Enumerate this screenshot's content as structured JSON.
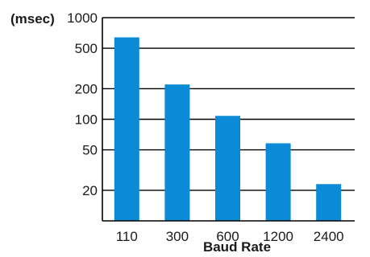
{
  "chart_data": {
    "type": "bar",
    "y_scale": "log",
    "grid": true,
    "y_unit_label": "(msec)",
    "xlabel": "Baud Rate",
    "ylabel": "",
    "categories": [
      "110",
      "300",
      "600",
      "1200",
      "2400"
    ],
    "values": [
      640,
      220,
      108,
      58,
      23
    ],
    "y_ticks": [
      1000,
      500,
      200,
      100,
      50,
      20
    ],
    "ylim": [
      10,
      1000
    ],
    "bar_color": "#0a8ad7"
  }
}
